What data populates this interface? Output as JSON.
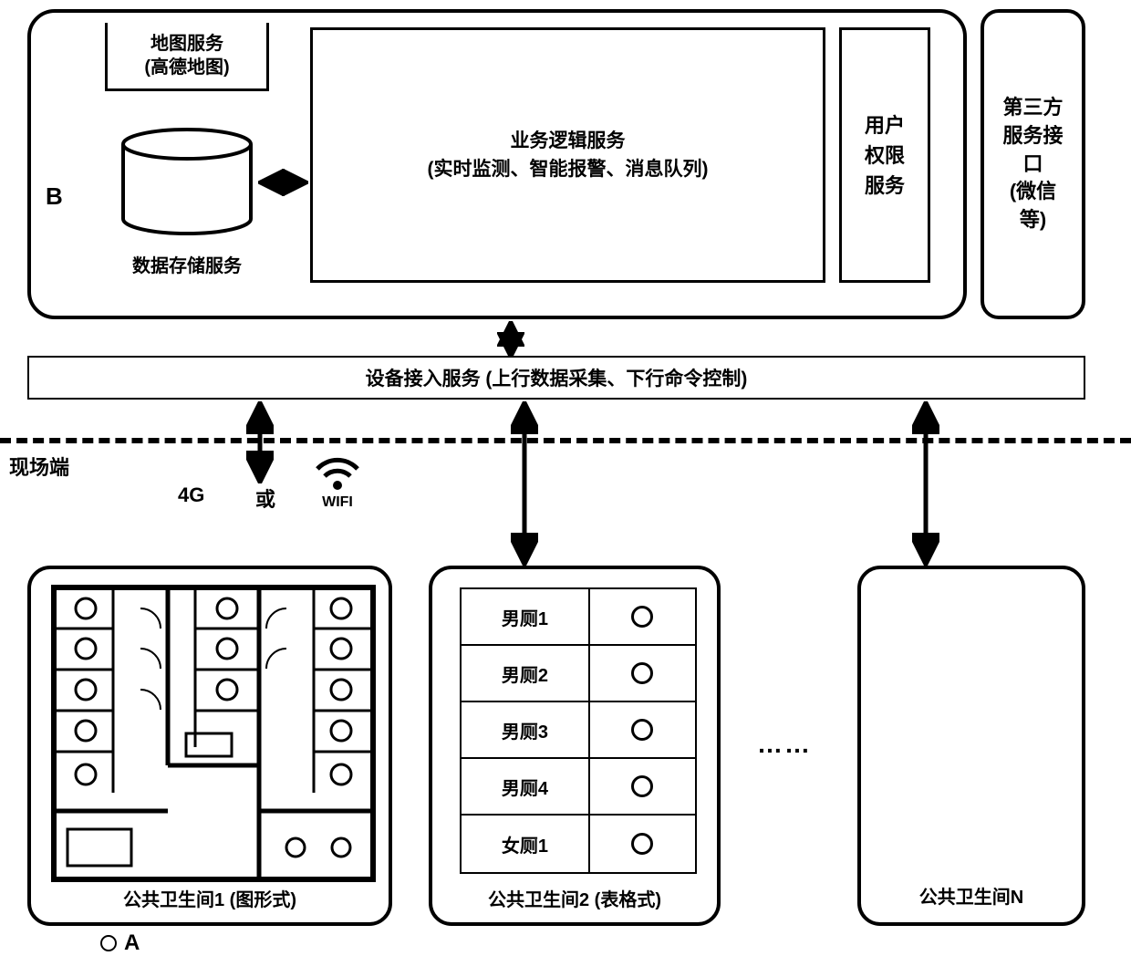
{
  "top": {
    "b_label": "B",
    "map_service": "地图服务\n(高德地图)",
    "storage_label": "数据存储服务",
    "logic_title": "业务逻辑服务",
    "logic_sub": "(实时监测、智能报警、消息队列)",
    "user_service": "用户\n权限\n服务",
    "third_party": "第三方\n服务接口\n(微信\n等)"
  },
  "device_bar": "设备接入服务 (上行数据采集、下行命令控制)",
  "site_label": "现场端",
  "conn": {
    "fourg": "4G",
    "or": "或",
    "wifi": "WIFI"
  },
  "cards": {
    "card1_title": "公共卫生间1 (图形式)",
    "card2_title": "公共卫生间2 (表格式)",
    "card3_title": "公共卫生间N",
    "table_rows": [
      {
        "label": "男厕1"
      },
      {
        "label": "男厕2"
      },
      {
        "label": "男厕3"
      },
      {
        "label": "男厕4"
      },
      {
        "label": "女厕1"
      }
    ]
  },
  "dots": "……",
  "a_label": "A",
  "colors": {
    "stroke": "#000000",
    "bg": "#ffffff"
  },
  "structure": {
    "type": "flowchart",
    "nodes": [
      {
        "id": "main",
        "label": "业务逻辑服务"
      },
      {
        "id": "storage",
        "label": "数据存储服务"
      },
      {
        "id": "map",
        "label": "地图服务"
      },
      {
        "id": "user",
        "label": "用户权限服务"
      },
      {
        "id": "third",
        "label": "第三方服务接口"
      },
      {
        "id": "device",
        "label": "设备接入服务"
      },
      {
        "id": "r1",
        "label": "公共卫生间1"
      },
      {
        "id": "r2",
        "label": "公共卫生间2"
      },
      {
        "id": "rn",
        "label": "公共卫生间N"
      }
    ],
    "edges": [
      {
        "from": "storage",
        "to": "main",
        "dir": "both"
      },
      {
        "from": "main",
        "to": "device",
        "dir": "both"
      },
      {
        "from": "device",
        "to": "r1",
        "dir": "both"
      },
      {
        "from": "device",
        "to": "r2",
        "dir": "both"
      },
      {
        "from": "device",
        "to": "rn",
        "dir": "both"
      }
    ]
  }
}
